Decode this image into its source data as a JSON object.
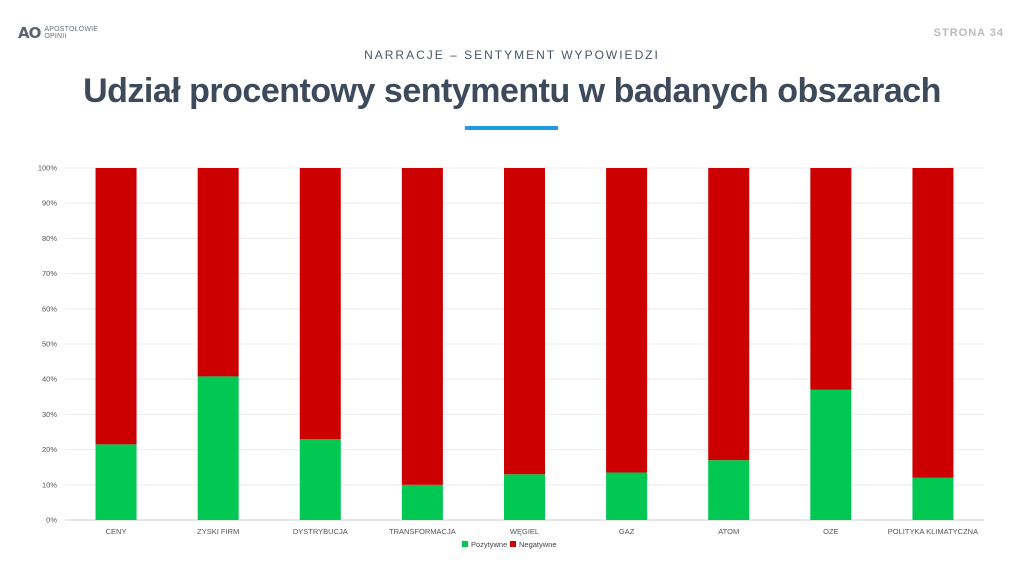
{
  "header": {
    "logo_mark": "AO",
    "logo_line1": "APOSTOŁOWIE",
    "logo_line2": "OPINII",
    "page_number": "STRONA  34",
    "subtitle": "NARRACJE – SENTYMENT WYPOWIEDZI",
    "title": "Udział procentowy sentymentu w badanych obszarach"
  },
  "colors": {
    "positive": "#00c853",
    "negative": "#cc0000",
    "accent": "#1e9be6"
  },
  "chart_data": {
    "type": "bar",
    "stacked": true,
    "categories": [
      "CENY",
      "ZYSKI FIRM",
      "DYSTRYBUCJA",
      "TRANSFORMACJA",
      "WĘGIEL",
      "GAZ",
      "ATOM",
      "OZE",
      "POLITYKA KLIMATYCZNA"
    ],
    "series": [
      {
        "name": "Pozytywne",
        "values": [
          21.5,
          40.8,
          23.0,
          10.0,
          13.0,
          13.5,
          17.0,
          37.0,
          12.0
        ]
      },
      {
        "name": "Negatywne",
        "values": [
          78.5,
          59.2,
          77.0,
          90.0,
          87.0,
          86.5,
          83.0,
          63.0,
          88.0
        ]
      }
    ],
    "yticks": [
      "0%",
      "10%",
      "20%",
      "30%",
      "40%",
      "50%",
      "60%",
      "70%",
      "80%",
      "90%",
      "100%"
    ],
    "ylim": [
      0,
      100
    ],
    "grid": true,
    "legend": "bottom-center"
  }
}
